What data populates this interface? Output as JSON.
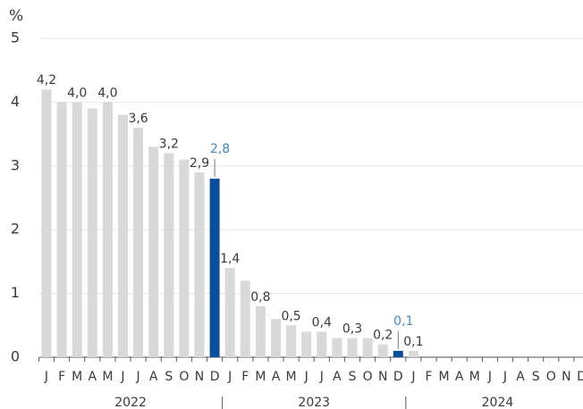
{
  "chart_data": {
    "type": "bar",
    "y_label": "%",
    "categories": [
      "J",
      "F",
      "M",
      "A",
      "M",
      "J",
      "J",
      "A",
      "S",
      "O",
      "N",
      "D",
      "J",
      "F",
      "M",
      "A",
      "M",
      "J",
      "J",
      "A",
      "S",
      "O",
      "N",
      "D",
      "J",
      "F",
      "M",
      "A",
      "M",
      "J",
      "J",
      "A",
      "S",
      "O",
      "N",
      "D"
    ],
    "years": [
      "2022",
      "2023",
      "2024"
    ],
    "values": [
      4.2,
      4.0,
      4.0,
      3.9,
      4.0,
      3.8,
      3.6,
      3.3,
      3.2,
      3.1,
      2.9,
      2.8,
      1.4,
      1.2,
      0.8,
      0.6,
      0.5,
      0.4,
      0.4,
      0.3,
      0.3,
      0.3,
      0.2,
      0.1,
      0.1,
      null,
      null,
      null,
      null,
      null,
      null,
      null,
      null,
      null,
      null,
      null
    ],
    "value_labels": [
      "4,2",
      null,
      "4,0",
      null,
      "4,0",
      null,
      "3,6",
      null,
      "3,2",
      null,
      "2,9",
      "2,8",
      "1,4",
      null,
      "0,8",
      null,
      "0,5",
      null,
      "0,4",
      null,
      "0,3",
      null,
      "0,2",
      "0,1",
      "0,1",
      null,
      null,
      null,
      null,
      null,
      null,
      null,
      null,
      null,
      null,
      null
    ],
    "colors": [
      "#d9d9d9",
      "#d9d9d9",
      "#d9d9d9",
      "#d9d9d9",
      "#d9d9d9",
      "#d9d9d9",
      "#d9d9d9",
      "#d9d9d9",
      "#d9d9d9",
      "#d9d9d9",
      "#d9d9d9",
      "#0b4f9c",
      "#d9d9d9",
      "#d9d9d9",
      "#d9d9d9",
      "#d9d9d9",
      "#d9d9d9",
      "#d9d9d9",
      "#d9d9d9",
      "#d9d9d9",
      "#d9d9d9",
      "#d9d9d9",
      "#d9d9d9",
      "#0b4f9c",
      "#d9d9d9",
      null,
      null,
      null,
      null,
      null,
      null,
      null,
      null,
      null,
      null,
      null
    ],
    "ylim": [
      0,
      5
    ],
    "yticks": [
      0,
      1,
      2,
      3,
      4,
      5
    ],
    "grid": true
  }
}
